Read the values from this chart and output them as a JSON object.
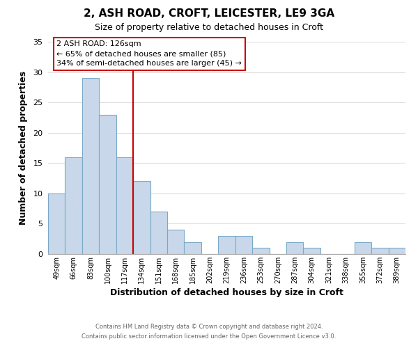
{
  "title": "2, ASH ROAD, CROFT, LEICESTER, LE9 3GA",
  "subtitle": "Size of property relative to detached houses in Croft",
  "xlabel": "Distribution of detached houses by size in Croft",
  "ylabel": "Number of detached properties",
  "bar_color": "#c8d8ea",
  "bar_edge_color": "#7aaac8",
  "vline_color": "#cc0000",
  "annotation_title": "2 ASH ROAD: 126sqm",
  "annotation_line1": "← 65% of detached houses are smaller (85)",
  "annotation_line2": "34% of semi-detached houses are larger (45) →",
  "annotation_box_color": "white",
  "annotation_box_edge": "#cc0000",
  "categories": [
    "49sqm",
    "66sqm",
    "83sqm",
    "100sqm",
    "117sqm",
    "134sqm",
    "151sqm",
    "168sqm",
    "185sqm",
    "202sqm",
    "219sqm",
    "236sqm",
    "253sqm",
    "270sqm",
    "287sqm",
    "304sqm",
    "321sqm",
    "338sqm",
    "355sqm",
    "372sqm",
    "389sqm"
  ],
  "values": [
    10,
    16,
    29,
    23,
    16,
    12,
    7,
    4,
    2,
    0,
    3,
    3,
    1,
    0,
    2,
    1,
    0,
    0,
    2,
    1,
    1
  ],
  "ylim": [
    0,
    35
  ],
  "yticks": [
    0,
    5,
    10,
    15,
    20,
    25,
    30,
    35
  ],
  "footer1": "Contains HM Land Registry data © Crown copyright and database right 2024.",
  "footer2": "Contains public sector information licensed under the Open Government Licence v3.0."
}
